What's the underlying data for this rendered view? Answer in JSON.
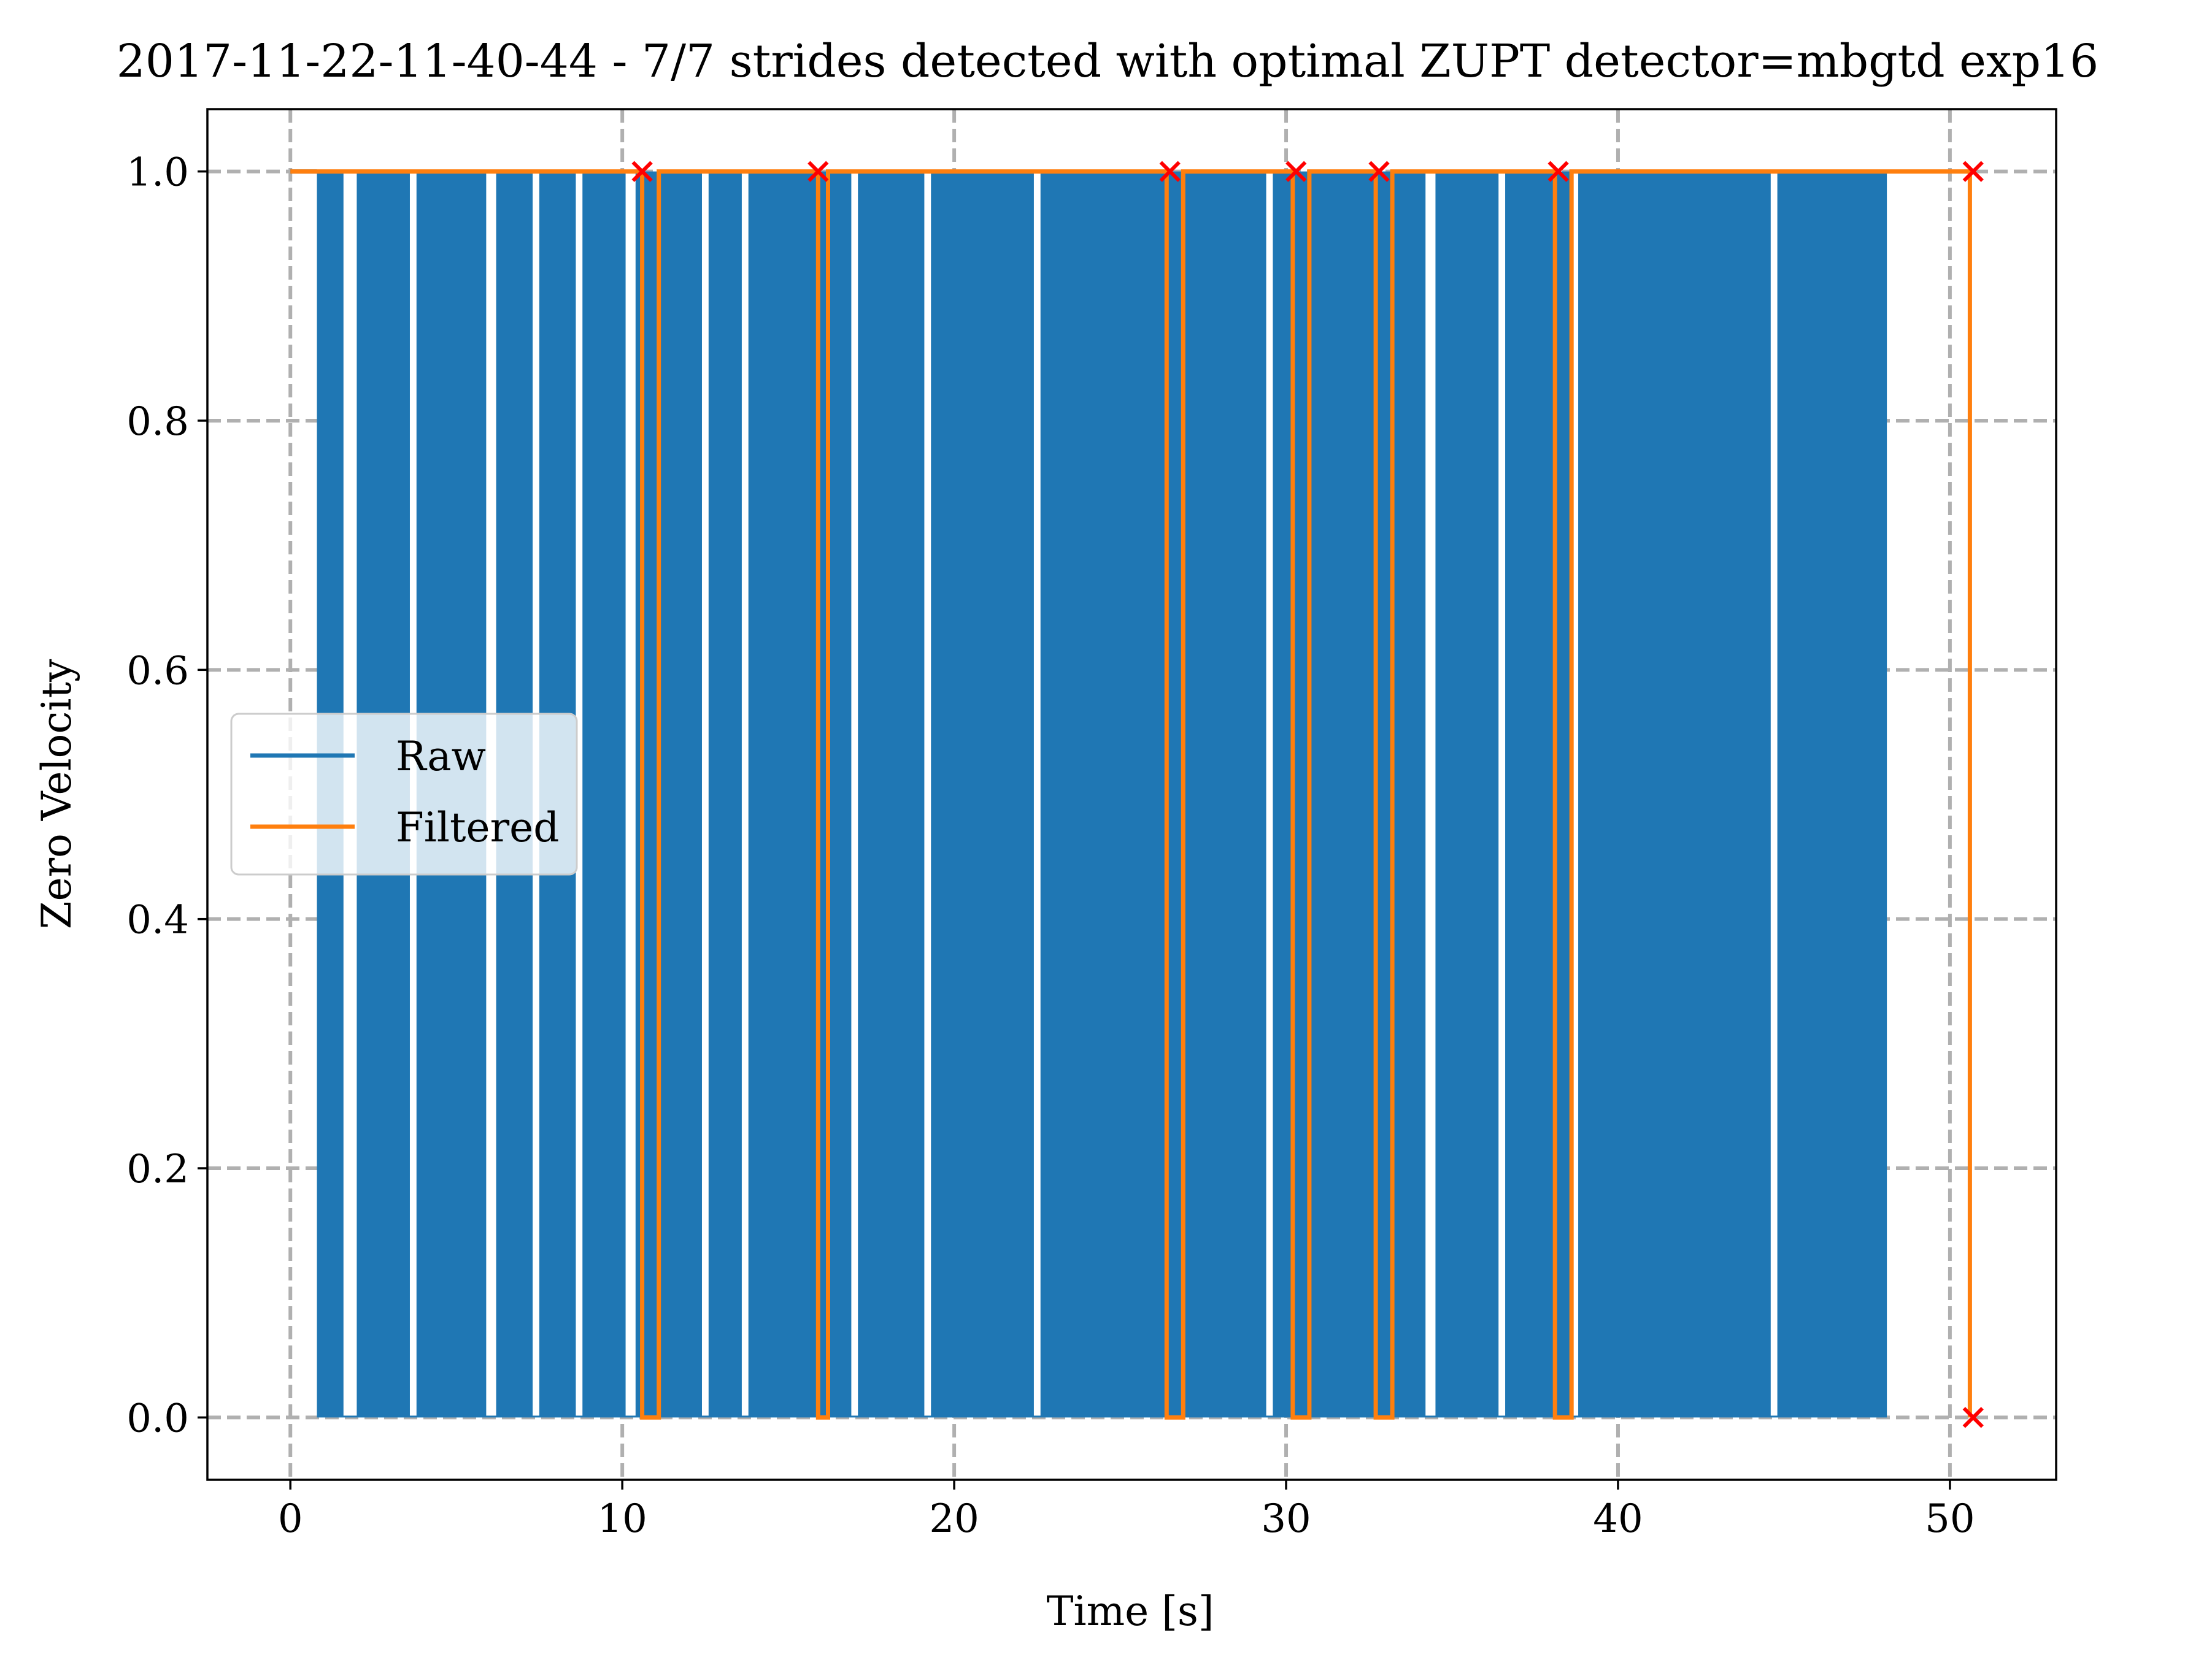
{
  "chart_data": {
    "type": "line",
    "title": "2017-11-22-11-40-44 - 7/7 strides detected with optimal ZUPT detector=mbgtd exp16",
    "xlabel": "Time [s]",
    "ylabel": "Zero Velocity",
    "xlim": [
      -2.5,
      53.2
    ],
    "ylim": [
      -0.05,
      1.05
    ],
    "xticks": [
      0,
      10,
      20,
      30,
      40,
      50
    ],
    "yticks": [
      0.0,
      0.2,
      0.4,
      0.6,
      0.8,
      1.0
    ],
    "xtick_labels": [
      "0",
      "10",
      "20",
      "30",
      "40",
      "50"
    ],
    "ytick_labels": [
      "0.0",
      "0.2",
      "0.4",
      "0.6",
      "0.8",
      "1.0"
    ],
    "grid": true,
    "legend_position": "center-left",
    "series": [
      {
        "name": "Raw",
        "color": "#1f77b4",
        "x_start": 0.0,
        "x_end": 48.1,
        "blank_gaps": [
          [
            1.6,
            2.0
          ],
          [
            3.6,
            3.8
          ],
          [
            5.9,
            6.2
          ],
          [
            7.3,
            7.5
          ],
          [
            8.6,
            8.8
          ],
          [
            10.1,
            10.4
          ],
          [
            12.4,
            12.6
          ],
          [
            13.6,
            13.8
          ],
          [
            16.9,
            17.1
          ],
          [
            19.1,
            19.3
          ],
          [
            22.4,
            22.6
          ],
          [
            29.4,
            29.6
          ],
          [
            34.2,
            34.5
          ],
          [
            36.4,
            36.6
          ],
          [
            38.6,
            38.8
          ],
          [
            44.6,
            44.8
          ]
        ],
        "dense_region": [
          0.8,
          48.1
        ]
      },
      {
        "name": "Filtered",
        "color": "#ff7f0e",
        "x": [
          0.0,
          10.6,
          10.6,
          11.1,
          11.1,
          15.9,
          15.9,
          16.2,
          16.2,
          26.4,
          26.4,
          26.9,
          26.9,
          30.2,
          30.2,
          30.7,
          30.7,
          32.7,
          32.7,
          33.2,
          33.2,
          38.1,
          38.1,
          38.6,
          38.6,
          50.6,
          50.6
        ],
        "y": [
          1,
          1,
          0,
          0,
          1,
          1,
          0,
          0,
          1,
          1,
          0,
          0,
          1,
          1,
          0,
          0,
          1,
          1,
          0,
          0,
          1,
          1,
          0,
          0,
          1,
          1,
          0
        ]
      }
    ],
    "stride_markers": {
      "color": "#ff0000",
      "symbol": "x",
      "points": [
        [
          10.6,
          1.0
        ],
        [
          15.9,
          1.0
        ],
        [
          26.5,
          1.0
        ],
        [
          30.3,
          1.0
        ],
        [
          32.8,
          1.0
        ],
        [
          38.2,
          1.0
        ],
        [
          50.7,
          1.0
        ],
        [
          50.7,
          0.0
        ]
      ]
    }
  }
}
